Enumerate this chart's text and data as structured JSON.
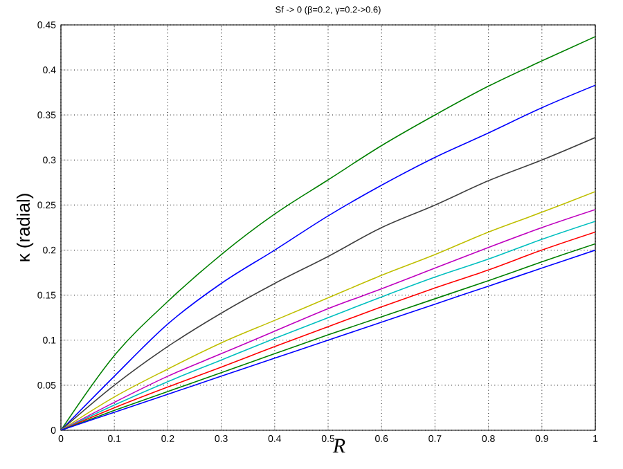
{
  "chart_data": {
    "type": "line",
    "title": "Sf -> 0 (β=0.2, γ=0.2->0.6)",
    "xlabel": "R",
    "ylabel": "κ (radial)",
    "x": [
      0,
      0.1,
      0.2,
      0.3,
      0.4,
      0.5,
      0.6,
      0.7,
      0.8,
      0.9,
      1.0
    ],
    "series": [
      {
        "color": "#008000",
        "values": [
          0,
          0.083,
          0.143,
          0.195,
          0.24,
          0.278,
          0.316,
          0.35,
          0.382,
          0.41,
          0.437
        ]
      },
      {
        "color": "#0000ff",
        "values": [
          0,
          0.06,
          0.118,
          0.163,
          0.2,
          0.238,
          0.272,
          0.303,
          0.33,
          0.358,
          0.383
        ]
      },
      {
        "color": "#404040",
        "values": [
          0,
          0.05,
          0.093,
          0.13,
          0.163,
          0.193,
          0.225,
          0.25,
          0.277,
          0.3,
          0.325
        ]
      },
      {
        "color": "#bfbf00",
        "values": [
          0,
          0.037,
          0.068,
          0.097,
          0.122,
          0.147,
          0.172,
          0.195,
          0.22,
          0.242,
          0.265
        ]
      },
      {
        "color": "#bf00bf",
        "values": [
          0,
          0.031,
          0.06,
          0.085,
          0.11,
          0.135,
          0.157,
          0.18,
          0.203,
          0.225,
          0.245
        ]
      },
      {
        "color": "#00bfbf",
        "values": [
          0,
          0.028,
          0.054,
          0.078,
          0.102,
          0.125,
          0.148,
          0.17,
          0.19,
          0.212,
          0.232
        ]
      },
      {
        "color": "#ff0000",
        "values": [
          0,
          0.025,
          0.048,
          0.07,
          0.093,
          0.115,
          0.137,
          0.158,
          0.178,
          0.2,
          0.22
        ]
      },
      {
        "color": "#008000",
        "values": [
          0,
          0.022,
          0.043,
          0.064,
          0.085,
          0.106,
          0.126,
          0.146,
          0.166,
          0.187,
          0.207
        ]
      },
      {
        "color": "#0000ff",
        "values": [
          0,
          0.02,
          0.04,
          0.06,
          0.08,
          0.1,
          0.12,
          0.14,
          0.16,
          0.18,
          0.2
        ]
      }
    ],
    "xlim": [
      0,
      1
    ],
    "ylim": [
      0,
      0.45
    ],
    "xticks": [
      0,
      0.1,
      0.2,
      0.3,
      0.4,
      0.5,
      0.6,
      0.7,
      0.8,
      0.9,
      1
    ],
    "yticks": [
      0,
      0.05,
      0.1,
      0.15,
      0.2,
      0.25,
      0.3,
      0.35,
      0.4,
      0.45
    ],
    "grid": true,
    "marker": "none",
    "line_style": "solid"
  }
}
